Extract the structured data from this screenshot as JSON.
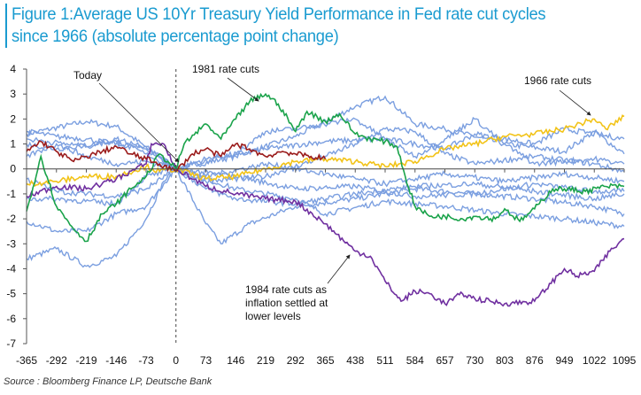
{
  "title_line1": "Figure 1:Average US 10Yr Treasury Yield Performance in Fed rate cut cycles",
  "title_line2": "since 1966 (absolute percentage point change)",
  "source": "Source : Bloomberg Finance LP, Deutsche Bank",
  "chart_data": {
    "type": "line",
    "title": "Figure 1:Average US 10Yr Treasury Yield Performance in Fed rate cut cycles since 1966 (absolute percentage point change)",
    "xlabel": "",
    "ylabel": "",
    "xlim": [
      -365,
      1095
    ],
    "ylim": [
      -7,
      4
    ],
    "x_ticks": [
      -365,
      -292,
      -219,
      -146,
      -73,
      0,
      73,
      146,
      219,
      292,
      365,
      438,
      511,
      584,
      657,
      730,
      803,
      876,
      949,
      1022,
      1095
    ],
    "y_ticks": [
      4,
      3,
      2,
      1,
      0,
      -1,
      -2,
      -3,
      -4,
      -5,
      -6,
      -7
    ],
    "grid": false,
    "annotations": [
      {
        "text": "Today",
        "points_to": [
          0,
          0
        ]
      },
      {
        "text": "1981 rate cuts",
        "points_to": [
          200,
          2.7
        ]
      },
      {
        "text": "1966 rate cuts",
        "points_to": [
          1022,
          2.1
        ]
      },
      {
        "text_lines": [
          "1984 rate cuts as",
          "inflation settled at",
          "lower levels"
        ],
        "points_to": [
          420,
          -3.5
        ]
      }
    ],
    "series": [
      {
        "id": "b1",
        "color": "#7b9fe0",
        "x": [
          -365,
          -219,
          -146,
          -40,
          0,
          146,
          292,
          438,
          511,
          584,
          657,
          803,
          949,
          1022,
          1095
        ],
        "y": [
          1.4,
          1.9,
          1.7,
          0.5,
          0,
          0.5,
          1.3,
          2.5,
          2.9,
          1.8,
          1.6,
          1.0,
          0.7,
          1.5,
          0.6
        ]
      },
      {
        "id": "b2",
        "color": "#7b9fe0",
        "x": [
          -365,
          -292,
          -219,
          -146,
          -73,
          -30,
          0,
          73,
          110,
          180,
          292,
          438,
          584,
          730,
          876,
          1022,
          1095
        ],
        "y": [
          -3.6,
          -3.2,
          -3.9,
          -3.5,
          -2.0,
          -0.5,
          0,
          -2.2,
          -3.0,
          -2.2,
          -1.5,
          -1.2,
          -0.8,
          -1.0,
          -1.2,
          -1.5,
          -1.8
        ]
      },
      {
        "id": "b3",
        "color": "#7b9fe0",
        "x": [
          -365,
          -292,
          -219,
          -146,
          -73,
          -30,
          0,
          146,
          292,
          365,
          511,
          657,
          803,
          949,
          1095
        ],
        "y": [
          -2.1,
          -2.5,
          -2.5,
          -1.8,
          -1.5,
          -0.6,
          0,
          -0.8,
          -1.2,
          -1.8,
          -1.3,
          -1.5,
          -1.8,
          -2.0,
          -2.3
        ]
      },
      {
        "id": "b4",
        "color": "#7b9fe0",
        "x": [
          -365,
          -292,
          -219,
          -73,
          0,
          73,
          219,
          365,
          511,
          657,
          730,
          876,
          949,
          1095
        ],
        "y": [
          1.5,
          1.3,
          1.2,
          0.8,
          0,
          0.4,
          0.8,
          1.1,
          1.2,
          0.8,
          1.4,
          1.0,
          1.6,
          1.2
        ]
      },
      {
        "id": "b5",
        "color": "#7b9fe0",
        "x": [
          -365,
          -292,
          -146,
          -73,
          0,
          73,
          219,
          365,
          438,
          511,
          584,
          657,
          730,
          876,
          1022,
          1095
        ],
        "y": [
          1.0,
          0.8,
          1.1,
          0.6,
          0,
          -0.5,
          -0.3,
          0.5,
          1.0,
          1.6,
          1.5,
          0.6,
          0.2,
          0.5,
          0.2,
          -0.1
        ]
      },
      {
        "id": "b6",
        "color": "#7b9fe0",
        "x": [
          -365,
          -292,
          -146,
          -73,
          0,
          146,
          292,
          438,
          584,
          730,
          876,
          1022,
          1095
        ],
        "y": [
          -0.4,
          -0.9,
          -1.1,
          -0.8,
          0,
          -0.3,
          -0.8,
          -0.7,
          -1.1,
          -1.0,
          -0.6,
          -0.9,
          -0.9
        ]
      },
      {
        "id": "b7",
        "color": "#7b9fe0",
        "x": [
          -365,
          -292,
          -219,
          -146,
          -73,
          0,
          73,
          219,
          365,
          511,
          657,
          803,
          949,
          1095
        ],
        "y": [
          0.5,
          1.0,
          0.5,
          0.2,
          0.3,
          0,
          -0.3,
          0.2,
          -0.2,
          -0.6,
          -0.2,
          -0.5,
          -0.2,
          -0.5
        ]
      },
      {
        "id": "b8",
        "color": "#7b9fe0",
        "x": [
          -365,
          -219,
          -146,
          -73,
          0,
          73,
          146,
          292,
          438,
          584,
          730,
          876,
          1022,
          1095
        ],
        "y": [
          1.2,
          0.9,
          1.2,
          0.9,
          0,
          -0.8,
          -1.2,
          -1.4,
          -1.0,
          -0.7,
          -0.6,
          -0.9,
          -1.2,
          -1.0
        ]
      },
      {
        "id": "b9",
        "color": "#7b9fe0",
        "x": [
          -365,
          -292,
          -146,
          -73,
          0,
          146,
          219,
          292,
          438,
          511,
          584,
          657,
          730,
          803,
          876,
          1022,
          1095
        ],
        "y": [
          -1.2,
          -1.2,
          -1.4,
          -0.3,
          0,
          0.6,
          1.5,
          1.6,
          2.0,
          1.2,
          0.5,
          1.2,
          2.0,
          1.0,
          0.2,
          0.4,
          0.2
        ]
      },
      {
        "id": "1966",
        "color": "#f2c318",
        "x": [
          -365,
          -292,
          -219,
          -146,
          -73,
          -40,
          0,
          73,
          146,
          219,
          292,
          365,
          438,
          511,
          584,
          657,
          730,
          803,
          876,
          949,
          1022,
          1050,
          1095
        ],
        "y": [
          -0.6,
          -0.5,
          -0.3,
          -0.3,
          0.1,
          -0.1,
          0,
          -0.4,
          -0.3,
          0,
          0.3,
          0.4,
          0.3,
          0.1,
          0.3,
          0.8,
          1.0,
          1.3,
          1.4,
          1.6,
          2.0,
          1.6,
          2.1
        ]
      },
      {
        "id": "1984",
        "color": "#7030a0",
        "x": [
          -365,
          -292,
          -219,
          -146,
          -73,
          -60,
          -30,
          0,
          73,
          146,
          219,
          292,
          365,
          438,
          475,
          511,
          550,
          584,
          620,
          657,
          700,
          730,
          803,
          876,
          949,
          980,
          1022,
          1060,
          1095
        ],
        "y": [
          -1.1,
          -0.7,
          -0.8,
          -0.4,
          0.2,
          1.0,
          1.0,
          0,
          -0.7,
          -1.0,
          -1.2,
          -1.3,
          -2.2,
          -3.3,
          -3.5,
          -4.5,
          -5.3,
          -4.9,
          -5.0,
          -5.4,
          -5.0,
          -5.2,
          -5.4,
          -5.3,
          -4.0,
          -4.3,
          -4.1,
          -3.3,
          -2.8
        ]
      },
      {
        "id": "1981",
        "color": "#1aa34a",
        "x": [
          -365,
          -330,
          -292,
          -255,
          -219,
          -180,
          -146,
          -110,
          -73,
          -40,
          0,
          20,
          73,
          110,
          146,
          180,
          219,
          250,
          292,
          320,
          365,
          400,
          438,
          475,
          511,
          540,
          560,
          584,
          620,
          657,
          700,
          730,
          780,
          803,
          840,
          876,
          920,
          949,
          1000,
          1050,
          1095
        ],
        "y": [
          -1.7,
          0.5,
          -1.5,
          -2.3,
          -2.9,
          -1.8,
          -1.4,
          -0.8,
          -0.3,
          0.6,
          0,
          1.0,
          1.8,
          1.2,
          2.0,
          2.7,
          3.0,
          2.6,
          1.5,
          2.3,
          1.9,
          2.2,
          1.4,
          1.2,
          1.1,
          0.9,
          -0.3,
          -1.5,
          -1.9,
          -1.9,
          -2.0,
          -1.9,
          -2.0,
          -1.6,
          -2.1,
          -1.6,
          -0.8,
          -0.8,
          -0.9,
          -0.7,
          -0.7
        ]
      },
      {
        "id": "today",
        "color": "#9b1c1c",
        "x": [
          -365,
          -330,
          -292,
          -250,
          -219,
          -180,
          -146,
          -110,
          -73,
          -40,
          0,
          40,
          73,
          110,
          146,
          180,
          219,
          260,
          292,
          330,
          365
        ],
        "y": [
          0.7,
          1.1,
          0.7,
          0.3,
          0.5,
          0.7,
          0.9,
          0.6,
          0.4,
          0.2,
          -0.1,
          0.6,
          0.8,
          0.5,
          1.0,
          0.8,
          0.5,
          0.7,
          0.6,
          0.5,
          0.4
        ]
      }
    ]
  }
}
